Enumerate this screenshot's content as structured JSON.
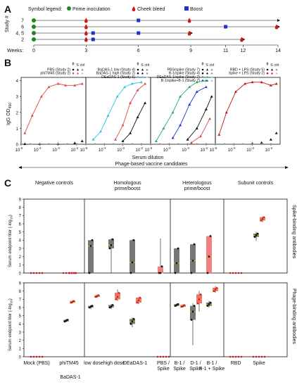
{
  "panelA": {
    "letter": "A",
    "legend_title": "Symbol legend:",
    "legend_items": [
      {
        "label": "Prime inoculation",
        "shape": "circle",
        "color": "#1a8a1a"
      },
      {
        "label": "Cheek bleed",
        "shape": "drop",
        "color": "#d01818"
      },
      {
        "label": "Boost",
        "shape": "square",
        "color": "#1a34cc"
      }
    ],
    "ylabel": "Study #",
    "xlabel": "Weeks:",
    "weeks_ticks": [
      0,
      3,
      6,
      9,
      11,
      12,
      14
    ],
    "studies": [
      {
        "label": "7",
        "end": 14,
        "bleeds": [
          3,
          9
        ],
        "boosts": [
          6
        ],
        "prime": 0
      },
      {
        "label": "6",
        "end": 14,
        "bleeds": [
          3,
          14
        ],
        "boosts": [
          11
        ],
        "prime": 0
      },
      {
        "label": "4, 5",
        "end": 9,
        "bleeds": [
          3,
          9
        ],
        "boosts": [
          3.4,
          6
        ],
        "prime": 0
      },
      {
        "label": "2",
        "end": 12,
        "bleeds": [
          3,
          12
        ],
        "boosts": [
          3.4
        ],
        "prime": 0
      }
    ]
  },
  "panelB": {
    "letter": "B",
    "ylabel": "IgG OD",
    "ylabel_sub": "450",
    "xlabel": "Serum dilution",
    "arrow_label": "Phage-based vaccine candidates",
    "header_labels": [
      "ϕ",
      "S",
      "ctrl"
    ]
  },
  "panelC": {
    "letter": "C",
    "ylabel": "Serum endpoint titer (-log",
    "ylabel_sub": "10",
    "ylabel_end": ")",
    "group_headers": [
      "Negative controls",
      "Homologous prime/boost",
      "Heterologous prime/boost",
      "Subunit controls"
    ],
    "row_labels": [
      "Spike-binding antibodies",
      "Phage-binding antibodies"
    ],
    "xcats": [
      "Mock (PBS)",
      "phiTM45",
      "low dose",
      "high dose",
      "DEaDAS-1",
      "PBS / Spike",
      "B-1 / Spike",
      "D-1 / Spike",
      "B-1 / B-1 + Spike",
      "RBD",
      "Spike"
    ],
    "xgroup_label": "BaDAS-1"
  },
  "chart_data": [
    {
      "type": "scatter",
      "panel": "B1",
      "xlabel": "",
      "xlim": [
        -5,
        -1.5
      ],
      "ylim": [
        0,
        4.2
      ],
      "x_scale": "log10",
      "x_ticks": [
        "10-5",
        "10-4",
        "10-3",
        "10-2"
      ],
      "y_ticks": [
        0,
        1,
        2,
        3,
        4
      ],
      "legend": [
        {
          "name": "PBS (Study 2)",
          "colors": [
            "#111111",
            "#111111",
            "#888888"
          ]
        },
        {
          "name": "phiTM45 (Study 2)",
          "colors": [
            "#e04848",
            "#e04848",
            "#f0a0a0"
          ]
        }
      ],
      "series": [
        {
          "name": "phiTM45 (Study 2)",
          "color": "#e04848",
          "x": [
            -4.8,
            -4.4,
            -3.9,
            -3.5,
            -3.0,
            -2.6,
            -2.1,
            -1.7
          ],
          "y": [
            0.7,
            1.8,
            3.0,
            3.6,
            3.8,
            3.7,
            3.7,
            3.8
          ],
          "fit": true
        },
        {
          "name": "PBS (Study 2)",
          "color": "#111111",
          "x": [
            -4.8,
            -4.0,
            -3.0,
            -2.1,
            -1.7
          ],
          "y": [
            0.02,
            0.02,
            0.03,
            0.08,
            0.2
          ],
          "fit": false
        }
      ]
    },
    {
      "type": "scatter",
      "panel": "B2",
      "xlim": [
        -5,
        -1.5
      ],
      "ylim": [
        0,
        4.2
      ],
      "legend": [
        {
          "name": "BaDAS-1 low (Study 4)",
          "colors": [
            "#111111",
            "#111111",
            "#888888"
          ]
        },
        {
          "name": "BaDAS-1 high (Study 2)",
          "colors": [
            "#111111",
            "#111111",
            "#888888"
          ]
        },
        {
          "name": "DEaDAS-1 (Study 6)",
          "colors": [
            "#2ec4e0",
            "#2ec4e0",
            "#9ce0ee"
          ]
        }
      ],
      "series": [
        {
          "name": "DEaDAS-1 (Study 6)",
          "color": "#2ec4e0",
          "x": [
            -4.6,
            -4.2,
            -3.8,
            -3.3,
            -2.9,
            -2.5,
            -2.0
          ],
          "y": [
            0.3,
            0.8,
            1.8,
            3.0,
            3.6,
            3.8,
            3.9
          ],
          "fit": true
        },
        {
          "name": "BaDAS-1 high (Study 2)",
          "color": "#e04848",
          "x": [
            -3.4,
            -3.0,
            -2.6,
            -2.2,
            -1.8
          ],
          "y": [
            0.3,
            1.2,
            2.6,
            3.4,
            3.8
          ],
          "fit": true
        },
        {
          "name": "BaDAS-1 low (Study 4)",
          "color": "#111111",
          "x": [
            -3.0,
            -2.6,
            -2.2,
            -1.8
          ],
          "y": [
            0.2,
            0.7,
            1.7,
            2.6
          ],
          "fit": true
        }
      ]
    },
    {
      "type": "scatter",
      "panel": "B3",
      "xlim": [
        -5,
        -1.5
      ],
      "ylim": [
        0,
        4.2
      ],
      "legend": [
        {
          "name": "PBS/spike (Study 7)",
          "colors": [
            "#111111",
            "#111111",
            "#888888"
          ]
        },
        {
          "name": "B-1/spike (Study 4)",
          "colors": [
            "#111111",
            "#111111",
            "#888888"
          ]
        },
        {
          "name": "DEaDAS-1/spike (Study 7)",
          "colors": [
            "#2aa86a",
            "#2aa86a",
            "#90d8b0"
          ]
        },
        {
          "name": "B-1/spike+B-1 (Study 7)",
          "colors": [
            "#1a34cc",
            "#1a34cc",
            "#9aa8ee"
          ]
        }
      ],
      "series": [
        {
          "name": "DEaDAS-1/spike (Study 7)",
          "color": "#2aa86a",
          "x": [
            -4.7,
            -4.3,
            -3.8,
            -3.4,
            -2.9,
            -2.5,
            -2.0
          ],
          "y": [
            0.2,
            1.0,
            2.0,
            3.0,
            3.6,
            3.9,
            4.0
          ],
          "fit": true
        },
        {
          "name": "B-1/spike+B-1 (Study 7)",
          "color": "#1a34cc",
          "x": [
            -3.8,
            -3.4,
            -2.9,
            -2.5,
            -2.0
          ],
          "y": [
            0.4,
            1.2,
            2.5,
            3.3,
            3.6
          ],
          "fit": true
        },
        {
          "name": "B-1/spike (Study 4)",
          "color": "#111111",
          "x": [
            -3.0,
            -2.5,
            -2.0,
            -1.7
          ],
          "y": [
            0.3,
            1.0,
            2.2,
            3.0
          ],
          "fit": true
        },
        {
          "name": "PBS/spike (Study 7)",
          "color": "#e04848",
          "x": [
            -2.8,
            -2.3,
            -1.8
          ],
          "y": [
            0.1,
            0.5,
            1.6
          ],
          "fit": true
        }
      ]
    },
    {
      "type": "scatter",
      "panel": "B4",
      "xlim": [
        -5,
        -1.5
      ],
      "ylim": [
        0,
        4.2
      ],
      "legend": [
        {
          "name": "RBD + LPS (Study 5)",
          "colors": [
            "#111111",
            "#111111",
            "#888888"
          ]
        },
        {
          "name": "Spike + LPS (Study 2)",
          "colors": [
            "#c01818",
            "#c01818",
            "#f0a0a0"
          ]
        }
      ],
      "series": [
        {
          "name": "Spike + LPS (Study 2)",
          "color": "#c01818",
          "x": [
            -4.8,
            -4.4,
            -3.9,
            -3.4,
            -3.0,
            -2.5,
            -2.0,
            -1.7
          ],
          "y": [
            0.6,
            2.0,
            3.3,
            3.8,
            3.9,
            3.9,
            3.7,
            3.8
          ],
          "fit": true
        },
        {
          "name": "RBD + LPS (Study 5)",
          "color": "#111111",
          "x": [
            -3.0,
            -2.5,
            -2.0,
            -1.7
          ],
          "y": [
            0.05,
            0.1,
            0.3,
            0.7
          ],
          "fit": false
        }
      ]
    },
    {
      "type": "box",
      "panel": "C-spike",
      "ylabel": "Serum endpoint titer (-log10)",
      "ylim": [
        0,
        9
      ],
      "y_ticks": [
        0,
        1,
        2,
        3,
        4,
        5,
        6,
        7,
        8,
        9
      ],
      "categories": [
        "Mock (PBS)",
        "phiTM45",
        "low dose",
        "high dose",
        "DEaDAS-1",
        "PBS / Spike",
        "B-1 / Spike",
        "D-1 / Spike",
        "B-1 / B-1 + Spike",
        "RBD",
        "Spike"
      ],
      "values": [
        {
          "min": 0,
          "q1": 0,
          "median": 0,
          "q3": 0,
          "max": 0,
          "points": [
            0,
            0,
            0,
            0,
            0
          ],
          "color": "#d01818"
        },
        {
          "min": 0,
          "q1": 0,
          "median": 0,
          "q3": 0,
          "max": 0,
          "points": [
            0,
            0,
            0,
            0,
            0
          ],
          "color": "#d01818"
        },
        {
          "min": 0,
          "q1": 0,
          "median": 3.3,
          "q3": 4.0,
          "max": 4.0,
          "points": [
            3.2,
            3.3,
            3.4,
            0,
            0
          ],
          "color": "#777777"
        },
        {
          "min": 0,
          "q1": 3.0,
          "median": 3.4,
          "q3": 4.1,
          "max": 4.2,
          "points": [
            3.1,
            3.4,
            3.6,
            4.1,
            0
          ],
          "color": "#777777"
        },
        {
          "min": 0,
          "q1": 0,
          "median": 1.3,
          "q3": 4.0,
          "max": 4.1,
          "points": [
            4.0,
            0,
            0,
            0
          ],
          "color": "#777777"
        },
        {
          "min": 0,
          "q1": 0,
          "median": 0,
          "q3": 0.8,
          "max": 4.2,
          "points": [
            4.2,
            0,
            0,
            0,
            0
          ],
          "color": "#f08080"
        },
        {
          "min": 0,
          "q1": 0,
          "median": 1.2,
          "q3": 3.0,
          "max": 3.0,
          "points": [
            3.0,
            2.8,
            0,
            0
          ],
          "color": "#777777"
        },
        {
          "min": 0,
          "q1": 0,
          "median": 1.5,
          "q3": 3.5,
          "max": 3.5,
          "points": [
            3.0,
            2.5,
            1.2,
            0
          ],
          "color": "#777777"
        },
        {
          "min": 0,
          "q1": 0,
          "median": 2.0,
          "q3": 4.5,
          "max": 4.5,
          "points": [
            3.2,
            2.8,
            2.0,
            0
          ],
          "color": "#f08080"
        },
        {
          "min": 0,
          "q1": 0,
          "median": 0,
          "q3": 0,
          "max": 0,
          "points": [
            0,
            0,
            0,
            0,
            0
          ],
          "color": "#d01818"
        },
        {
          "min": 3.9,
          "q1": 4.4,
          "median": 4.6,
          "q3": 4.8,
          "max": 5.0,
          "points": [
            4.4,
            4.6,
            4.8,
            5.0
          ],
          "color": "#777777"
        }
      ],
      "secondary": [
        {
          "index": 1,
          "min": 0,
          "median": 0,
          "max": 0
        },
        {
          "index": 10,
          "min": 6.2,
          "q1": 6.4,
          "median": 6.6,
          "q3": 6.8,
          "max": 6.9
        }
      ]
    },
    {
      "type": "box",
      "panel": "C-phage",
      "ylabel": "Serum endpoint titer (-log10)",
      "ylim": [
        0,
        9
      ],
      "y_ticks": [
        0,
        1,
        2,
        3,
        4,
        5,
        6,
        7,
        8,
        9
      ],
      "categories": [
        "Mock (PBS)",
        "phiTM45",
        "low dose",
        "high dose",
        "DEaDAS-1",
        "PBS / Spike",
        "B-1 / Spike",
        "D-1 / Spike",
        "B-1 / B-1 + Spike",
        "RBD",
        "Spike"
      ],
      "values": [
        {
          "min": 0,
          "q1": 0,
          "median": 0,
          "q3": 0,
          "max": 0,
          "color": "#d01818"
        },
        {
          "min": 4.2,
          "q1": 4.3,
          "median": 4.4,
          "q3": 4.5,
          "max": 4.6,
          "color": "#777777"
        },
        {
          "min": 5.8,
          "q1": 6.0,
          "median": 6.1,
          "q3": 6.2,
          "max": 6.3,
          "color": "#777777"
        },
        {
          "min": 5.8,
          "q1": 6.0,
          "median": 6.1,
          "q3": 6.3,
          "max": 6.4,
          "color": "#777777"
        },
        {
          "min": 3.6,
          "q1": 4.0,
          "median": 4.3,
          "q3": 4.6,
          "max": 4.8,
          "color": "#777777"
        },
        {
          "min": 0,
          "q1": 0,
          "median": 0,
          "q3": 0,
          "max": 0,
          "color": "#d01818"
        },
        {
          "min": 6.1,
          "q1": 6.2,
          "median": 6.3,
          "q3": 6.4,
          "max": 6.5,
          "color": "#777777"
        },
        {
          "min": 1.4,
          "q1": 4.5,
          "median": 5.5,
          "q3": 6.2,
          "max": 6.5,
          "color": "#777777"
        },
        {
          "min": 6.0,
          "q1": 6.2,
          "median": 6.4,
          "q3": 6.6,
          "max": 6.8,
          "color": "#777777"
        },
        {
          "min": 0,
          "q1": 0,
          "median": 0,
          "q3": 0,
          "max": 0,
          "color": "#d01818"
        },
        {
          "min": 0,
          "q1": 0,
          "median": 0,
          "q3": 0,
          "max": 0,
          "color": "#d01818"
        }
      ],
      "secondary": [
        {
          "index": 1,
          "min": 6.5,
          "q1": 6.6,
          "median": 6.7,
          "q3": 6.8,
          "max": 6.9
        },
        {
          "index": 2,
          "min": 7.2,
          "q1": 7.3,
          "median": 7.4,
          "q3": 7.5,
          "max": 7.6
        },
        {
          "index": 3,
          "min": 6.8,
          "q1": 7.0,
          "median": 7.3,
          "q3": 7.8,
          "max": 8.2
        },
        {
          "index": 4,
          "min": 6.4,
          "q1": 6.6,
          "median": 6.9,
          "q3": 7.2,
          "max": 7.3
        },
        {
          "index": 6,
          "min": 6.0,
          "q1": 6.1,
          "median": 6.2,
          "q3": 6.3,
          "max": 6.4
        },
        {
          "index": 7,
          "min": 5.5,
          "q1": 6.5,
          "median": 7.0,
          "q3": 7.6,
          "max": 8.0
        },
        {
          "index": 8,
          "min": 7.8,
          "q1": 8.0,
          "median": 8.2,
          "q3": 8.4,
          "max": 8.6
        }
      ]
    }
  ]
}
